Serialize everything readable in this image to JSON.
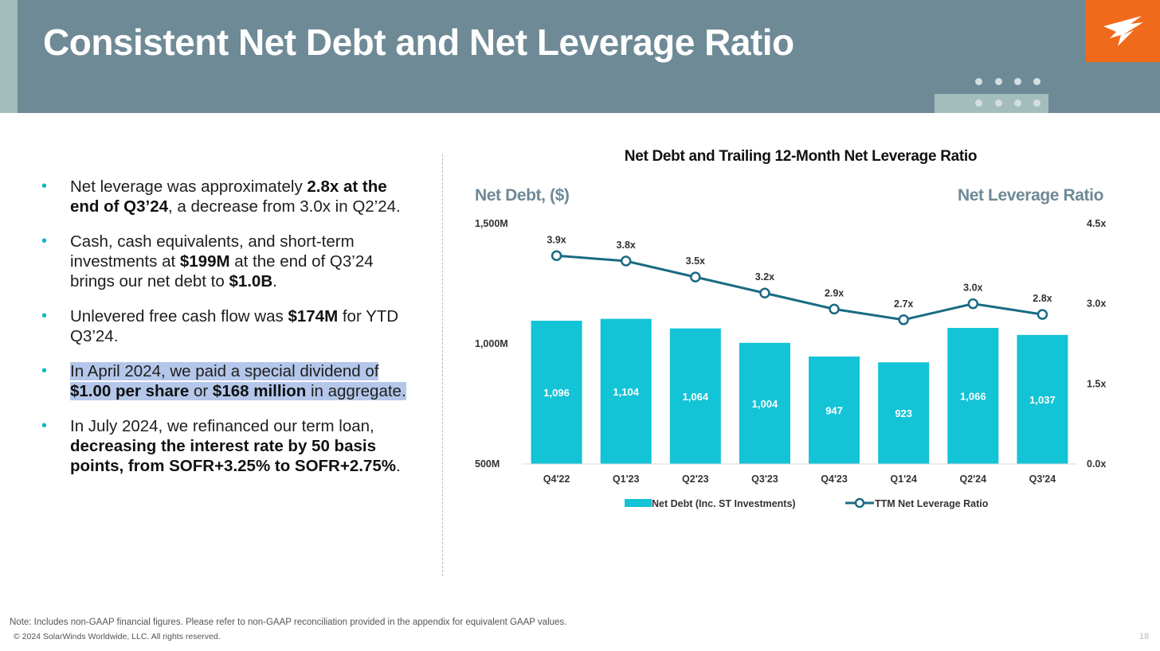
{
  "slide": {
    "title": "Consistent Net Debt and Net Leverage Ratio",
    "page_number": "18",
    "note": "Note: Includes non-GAAP financial figures. Please refer to non-GAAP reconciliation provided in the appendix for equivalent GAAP values.",
    "copyright": "© 2024 SolarWinds Worldwide, LLC. All rights reserved.",
    "logo_icon": "solarwinds-bird-icon",
    "colors": {
      "header": "#6e8a96",
      "accent_teal": "#13c3d6",
      "line": "#1a6b83",
      "logo_bg": "#f06a1c",
      "highlight": "#b4c7ea"
    }
  },
  "bullets": [
    {
      "parts": [
        {
          "t": "Net leverage was approximately "
        },
        {
          "t": "2.8x at the end of Q3’24",
          "b": true
        },
        {
          "t": ", a decrease from 3.0x in Q2’24."
        }
      ]
    },
    {
      "parts": [
        {
          "t": "Cash, cash equivalents, and short-term investments at "
        },
        {
          "t": "$199M",
          "b": true
        },
        {
          "t": " at the end of Q3’24 brings our net debt to "
        },
        {
          "t": "$1.0B",
          "b": true
        },
        {
          "t": "."
        }
      ]
    },
    {
      "parts": [
        {
          "t": "Unlevered free cash flow was "
        },
        {
          "t": "$174M",
          "b": true
        },
        {
          "t": " for YTD Q3’24."
        }
      ]
    },
    {
      "highlight": true,
      "parts": [
        {
          "t": "In April 2024, we paid a special dividend of "
        },
        {
          "t": "$1.00 per share",
          "b": true
        },
        {
          "t": " or "
        },
        {
          "t": "$168 million",
          "b": true
        },
        {
          "t": " in aggregate."
        }
      ]
    },
    {
      "parts": [
        {
          "t": "In July 2024, we refinanced our term loan, "
        },
        {
          "t": "decreasing the interest rate by 50 basis points, from SOFR+3.25% to SOFR+2.75%",
          "b": true
        },
        {
          "t": "."
        }
      ]
    }
  ],
  "chart_data": {
    "type": "bar",
    "title": "Net Debt and Trailing 12-Month Net Leverage Ratio",
    "ylabel": "Net Debt, ($)",
    "y2label": "Net Leverage Ratio",
    "categories": [
      "Q4'22",
      "Q1'23",
      "Q2'23",
      "Q3'23",
      "Q4'23",
      "Q1'24",
      "Q2'24",
      "Q3'24"
    ],
    "ylim": [
      500,
      1500
    ],
    "y2lim": [
      0,
      4.5
    ],
    "y_ticks": [
      "500M",
      "1,000M",
      "1,500M"
    ],
    "y_tick_values": [
      500,
      1000,
      1500
    ],
    "y2_ticks": [
      "0.0x",
      "1.5x",
      "3.0x",
      "4.5x"
    ],
    "y2_tick_values": [
      0,
      1.5,
      3.0,
      4.5
    ],
    "series": [
      {
        "name": "Net Debt (Inc. ST Investments)",
        "type": "bar",
        "axis": "left",
        "color": "#13c3d6",
        "values": [
          1096,
          1104,
          1064,
          1004,
          947,
          923,
          1066,
          1037
        ],
        "labels": [
          "1,096",
          "1,104",
          "1,064",
          "1,004",
          "947",
          "923",
          "1,066",
          "1,037"
        ]
      },
      {
        "name": "TTM Net Leverage Ratio",
        "type": "line",
        "axis": "right",
        "color": "#1a6b83",
        "values": [
          3.9,
          3.8,
          3.5,
          3.2,
          2.9,
          2.7,
          3.0,
          2.8
        ],
        "labels": [
          "3.9x",
          "3.8x",
          "3.5x",
          "3.2x",
          "2.9x",
          "2.7x",
          "3.0x",
          "2.8x"
        ]
      }
    ],
    "legend_position": "bottom",
    "grid": false
  }
}
